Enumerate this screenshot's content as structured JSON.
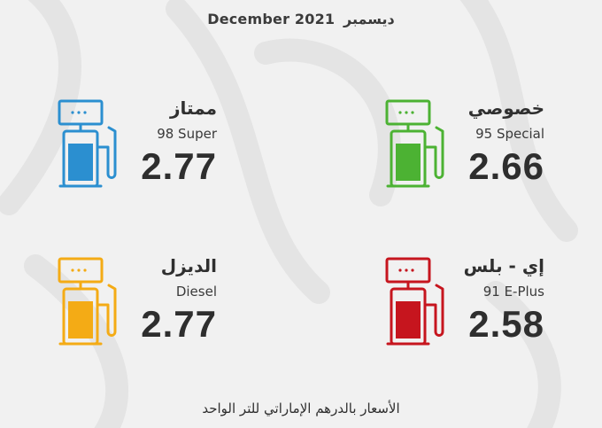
{
  "header": {
    "date_en": "December 2021",
    "date_ar": "ديسمبر"
  },
  "fuels": [
    {
      "name_ar": "ممتاز",
      "name_en": "98 Super",
      "price": "2.77",
      "color": "#2b8fd0",
      "icon": "fuel-pump-icon"
    },
    {
      "name_ar": "خصوصي",
      "name_en": "95 Special",
      "price": "2.66",
      "color": "#4cb233",
      "icon": "fuel-pump-icon"
    },
    {
      "name_ar": "الديزل",
      "name_en": "Diesel",
      "price": "2.77",
      "color": "#f4ab15",
      "icon": "fuel-pump-icon"
    },
    {
      "name_ar": "إي - بلس",
      "name_en": "91 E-Plus",
      "price": "2.58",
      "color": "#c6151e",
      "icon": "fuel-pump-icon"
    }
  ],
  "footer": {
    "note_ar": "الأسعار بالدرهم الإماراتي للتر الواحد"
  }
}
